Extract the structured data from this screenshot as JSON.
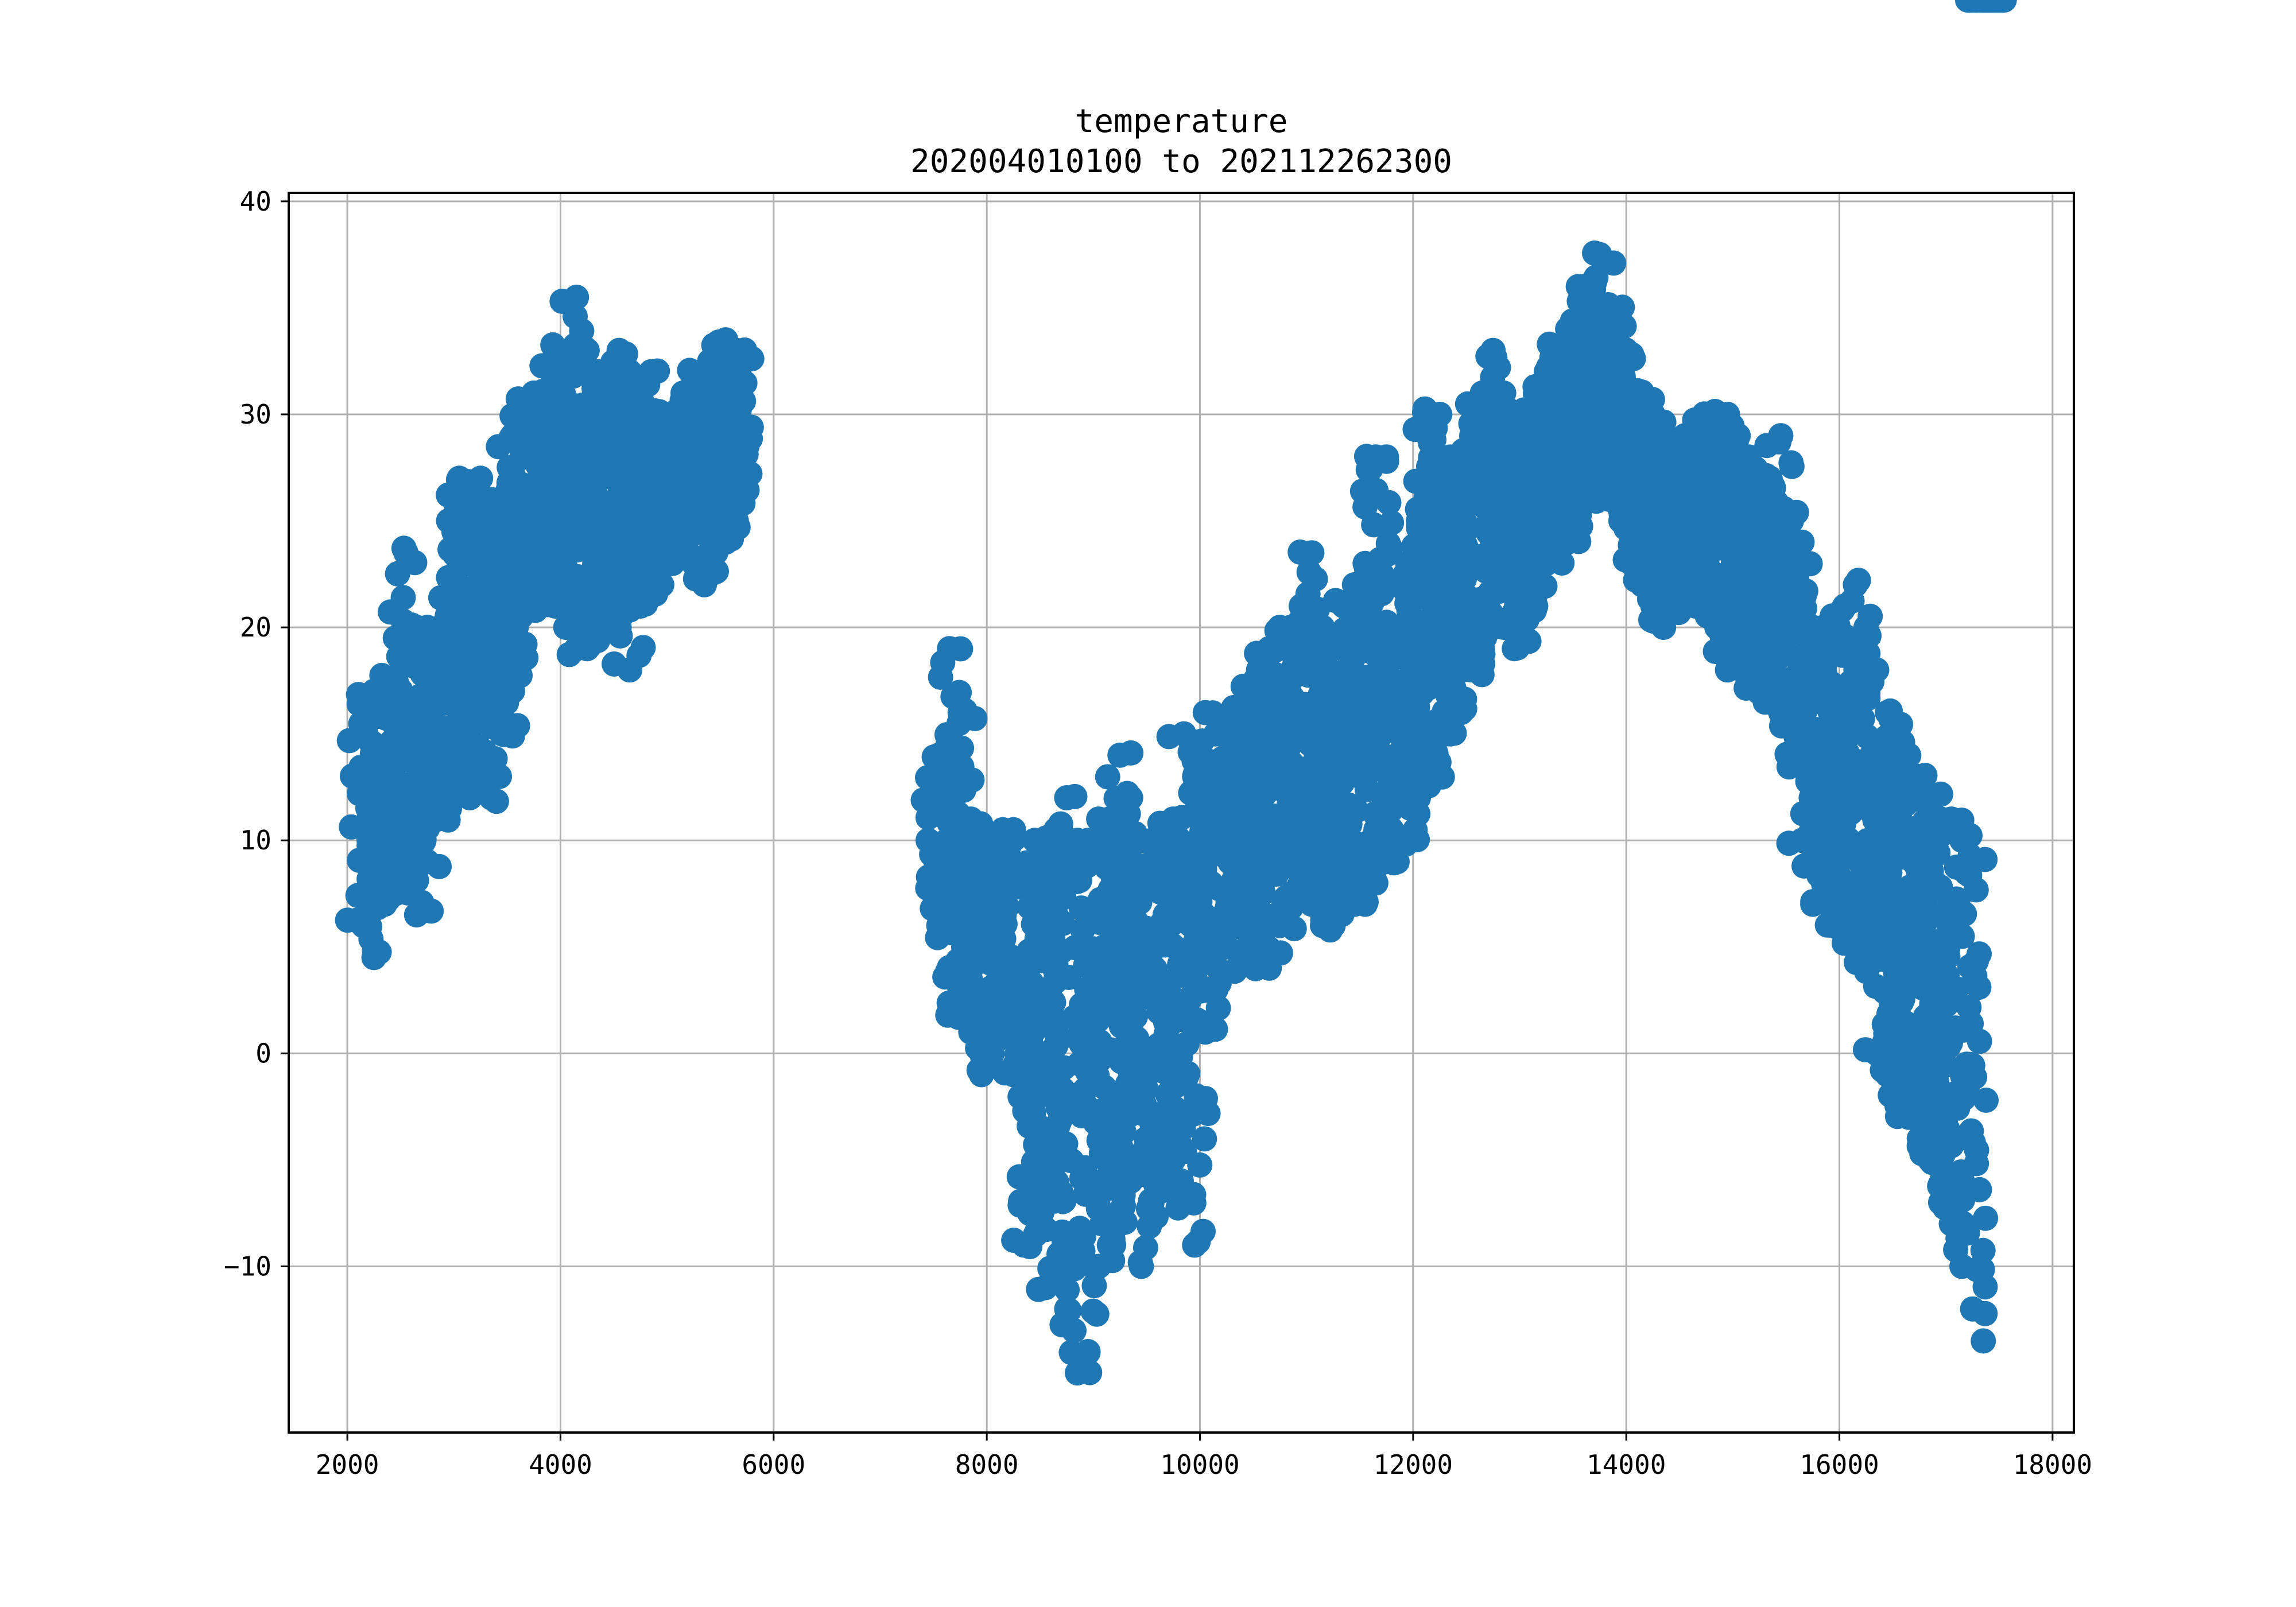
{
  "chart_data": {
    "type": "scatter",
    "title": "temperature",
    "subtitle": "202004010100 to 202112262300",
    "xlabel": "",
    "ylabel": "",
    "xlim": [
      1450,
      18200
    ],
    "ylim": [
      -17.8,
      40.4
    ],
    "xticks": [
      2000,
      4000,
      6000,
      8000,
      10000,
      12000,
      14000,
      16000,
      18000
    ],
    "xtick_labels": [
      "2000",
      "4000",
      "6000",
      "8000",
      "10000",
      "12000",
      "14000",
      "16000",
      "18000"
    ],
    "yticks": [
      -10,
      0,
      10,
      20,
      30,
      40
    ],
    "ytick_labels": [
      "−10",
      "0",
      "10",
      "20",
      "30",
      "40"
    ],
    "grid": true,
    "color": "#1f77b4",
    "series": [
      {
        "x": [
          2150,
          2250,
          2350,
          2450,
          2550,
          2650,
          2750,
          2850,
          2950,
          3050,
          3150,
          3250,
          3350,
          3450,
          3550,
          3650,
          3750,
          3850,
          3950,
          4050,
          4150,
          4250,
          4350,
          4450,
          4550,
          4650,
          4750,
          4850,
          4950,
          5050,
          5150,
          5250,
          5350,
          5450,
          5550,
          5650,
          7550,
          7650,
          7750,
          7850,
          7950,
          8050,
          8150,
          8250,
          8350,
          8450,
          8550,
          8650,
          8750,
          8850,
          8950,
          9050,
          9150,
          9250,
          9350,
          9450,
          9550,
          9650,
          9750,
          9850,
          9950,
          10050,
          10150,
          10250,
          10350,
          10450,
          10550,
          10650,
          10750,
          10850,
          10950,
          11050,
          11150,
          11250,
          11350,
          11450,
          11550,
          11650,
          11750,
          11850,
          11950,
          12050,
          12150,
          12250,
          12350,
          12450,
          12550,
          12650,
          12750,
          12850,
          12950,
          13050,
          13150,
          13250,
          13350,
          13450,
          13550,
          13650,
          13750,
          13850,
          13950,
          14050,
          14150,
          14250,
          14350,
          14450,
          14550,
          14650,
          14750,
          14850,
          14950,
          15050,
          15150,
          15250,
          15350,
          15450,
          15550,
          15650,
          15750,
          15850,
          15950,
          16050,
          16150,
          16250,
          16350,
          16450,
          16550,
          16650,
          16750,
          16850,
          16950,
          17050,
          17150,
          17250,
          17350,
          17420
        ],
        "y_min": [
          6,
          4.5,
          7,
          7.5,
          8,
          6.5,
          9,
          11,
          13,
          14,
          12,
          13,
          12,
          15,
          17,
          19,
          21,
          22,
          21,
          20,
          19,
          19,
          20,
          21,
          20,
          18,
          21,
          22,
          22,
          23,
          24,
          23,
          22,
          25,
          24,
          25,
          6,
          4,
          2,
          1,
          -1,
          0,
          1,
          -1,
          -9,
          -7,
          -11,
          -10,
          -12,
          -15,
          -14,
          -10,
          -9,
          -8,
          -6,
          -10,
          -7,
          -6,
          -5,
          -7,
          -9,
          1,
          3,
          5,
          4,
          5,
          5,
          4,
          6,
          7,
          8,
          7,
          6,
          6,
          8,
          7,
          7,
          8,
          9,
          9,
          10,
          12,
          14,
          13,
          15,
          16,
          18,
          19,
          20,
          20,
          19,
          21,
          21,
          23,
          24,
          24,
          26,
          28,
          27,
          26,
          25,
          23,
          22,
          21,
          20,
          21,
          22,
          21,
          21,
          20,
          18,
          19,
          18,
          17,
          17,
          16,
          14,
          10,
          7,
          8,
          6,
          6,
          5,
          4,
          0,
          -1,
          -2,
          -3,
          -4,
          -5,
          -7,
          -8,
          -10,
          -12,
          -13.5
        ],
        "y_max": [
          16.5,
          17,
          17,
          19.5,
          23.5,
          20,
          20,
          19,
          25,
          27,
          26,
          27,
          26,
          24,
          29,
          30,
          31,
          31,
          33,
          28,
          35.5,
          33,
          32,
          31,
          33,
          32,
          31,
          32,
          30,
          29,
          31,
          31,
          32,
          33,
          33.5,
          33,
          14,
          19,
          16,
          11,
          10,
          10,
          10.5,
          10.5,
          8,
          10,
          10,
          10.5,
          12,
          10,
          10,
          11,
          11,
          14,
          12,
          10,
          10,
          10,
          11,
          15,
          13,
          16,
          15,
          15,
          16,
          17,
          18,
          19,
          20,
          20,
          21,
          23.5,
          20,
          19,
          21,
          22,
          23,
          28,
          28,
          22,
          23,
          25,
          30,
          30,
          28,
          27,
          29,
          31,
          33,
          31,
          30,
          30,
          31,
          32,
          33,
          34,
          36,
          36,
          37.5,
          35,
          33,
          31,
          31,
          30,
          29,
          28,
          29,
          28,
          30,
          30,
          30,
          29,
          28,
          26,
          27,
          29,
          25,
          24,
          20,
          20,
          19,
          21,
          22,
          20,
          18,
          16,
          15,
          14,
          13,
          12,
          11,
          11,
          10,
          9
        ],
        "rows_per_column": 26
      }
    ]
  }
}
